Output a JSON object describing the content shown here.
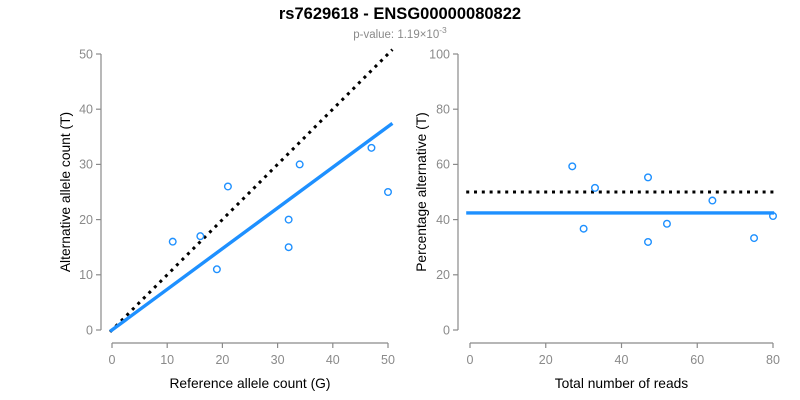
{
  "header": {
    "title": "rs7629618 - ENSG00000080822",
    "subtitle_prefix": "p-value: 1.19×10",
    "subtitle_exponent": "-3"
  },
  "colors": {
    "accent_blue": "#1e90ff",
    "reference_black": "#000000",
    "axis_gray": "#8a8a8a",
    "label_black": "#000000"
  },
  "chart_data": [
    {
      "type": "scatter",
      "name": "allele-count-scatter",
      "xlabel": "Reference allele count (G)",
      "ylabel": "Alternative allele count (T)",
      "xlim": [
        0,
        50
      ],
      "ylim": [
        0,
        50
      ],
      "xticks": [
        0,
        10,
        20,
        30,
        40,
        50
      ],
      "yticks": [
        0,
        10,
        20,
        30,
        40,
        50
      ],
      "grid": false,
      "legend": "none",
      "points": [
        [
          11,
          16
        ],
        [
          16,
          17
        ],
        [
          19,
          11
        ],
        [
          21,
          26
        ],
        [
          32,
          15
        ],
        [
          32,
          20
        ],
        [
          34,
          30
        ],
        [
          47,
          33
        ],
        [
          50,
          25
        ]
      ],
      "lines": [
        {
          "name": "identity-line",
          "kind": "abline",
          "slope": 1,
          "intercept": 0,
          "style": "dotted",
          "color": "#000000"
        },
        {
          "name": "fit-line",
          "kind": "abline",
          "slope": 0.737,
          "intercept": 0,
          "style": "solid",
          "color": "#1e90ff"
        }
      ]
    },
    {
      "type": "scatter",
      "name": "percentage-scatter",
      "xlabel": "Total number of reads",
      "ylabel": "Percentage alternative (T)",
      "xlim": [
        0,
        80
      ],
      "ylim": [
        0,
        100
      ],
      "xticks": [
        0,
        20,
        40,
        60,
        80
      ],
      "yticks": [
        0,
        20,
        40,
        60,
        80,
        100
      ],
      "grid": false,
      "legend": "none",
      "points": [
        [
          27,
          59.3
        ],
        [
          30,
          36.7
        ],
        [
          33,
          51.5
        ],
        [
          47,
          55.3
        ],
        [
          47,
          31.9
        ],
        [
          52,
          38.5
        ],
        [
          64,
          46.9
        ],
        [
          75,
          33.3
        ],
        [
          80,
          41.3
        ]
      ],
      "lines": [
        {
          "name": "expected-50pct-line",
          "kind": "hline",
          "y": 50,
          "style": "dotted",
          "color": "#000000"
        },
        {
          "name": "observed-mean-line",
          "kind": "hline",
          "y": 42.4,
          "style": "solid",
          "color": "#1e90ff"
        }
      ]
    }
  ]
}
